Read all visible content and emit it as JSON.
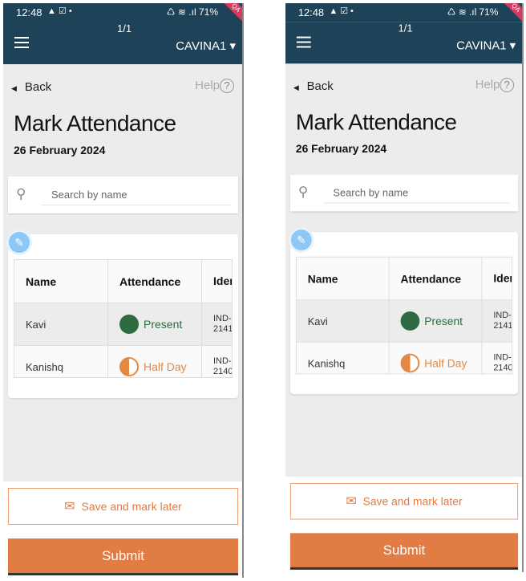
{
  "status": {
    "time": "12:48",
    "left_icons": "▲ ☑ •",
    "right_icons": "♺ ≋ .ıl",
    "battery": "71%",
    "ribbon": "QA"
  },
  "header": {
    "page_indicator": "1/1",
    "user": "CAVINA1 ▾"
  },
  "nav": {
    "back": "Back",
    "help": "Help",
    "help_icon": "?"
  },
  "page": {
    "title": "Mark Attendance",
    "date": "26 February 2024"
  },
  "search": {
    "placeholder": "Search by name"
  },
  "table": {
    "headers": [
      "Name",
      "Attendance",
      "Iden"
    ],
    "rows": [
      {
        "name": "Kavi",
        "attendance": "Present",
        "id_line1": "IND-:",
        "id_line2": "2141"
      },
      {
        "name": "Kanishq",
        "attendance": "Half Day",
        "id_line1": "IND-:",
        "id_line2": "2140"
      }
    ]
  },
  "actions": {
    "save_later": "Save and mark later",
    "submit": "Submit"
  },
  "colors": {
    "header": "#1e4258",
    "accent": "#e27c45",
    "present": "#2e6b40",
    "half_day": "#e28a45"
  }
}
